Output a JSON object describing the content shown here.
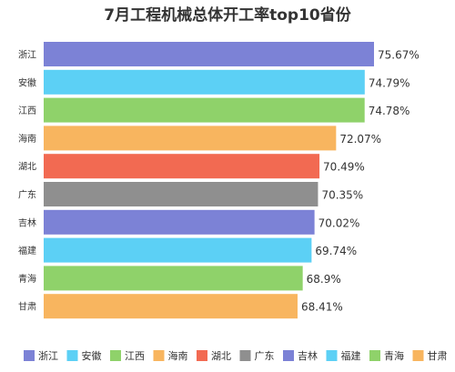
{
  "chart_data": {
    "type": "bar",
    "orientation": "horizontal",
    "title": "7月工程机械总体开工率top10省份",
    "xlabel": "",
    "ylabel": "",
    "grid": false,
    "legend_position": "bottom",
    "categories": [
      "浙江",
      "安徽",
      "江西",
      "海南",
      "湖北",
      "广东",
      "吉林",
      "福建",
      "青海",
      "甘肃"
    ],
    "values": [
      75.67,
      74.79,
      74.78,
      72.07,
      70.49,
      70.35,
      70.02,
      69.74,
      68.9,
      68.41
    ],
    "data_labels": [
      "75.67%",
      "74.79%",
      "74.78%",
      "72.07%",
      "70.49%",
      "70.35%",
      "70.02%",
      "69.74%",
      "68.9%",
      "68.41%"
    ],
    "xlim": [
      44.3,
      75.67
    ],
    "colors": [
      "#7c82d6",
      "#5cd0f5",
      "#8fd26a",
      "#f8b55f",
      "#f26a52",
      "#8f8f8f",
      "#7c82d6",
      "#5cd0f5",
      "#8fd26a",
      "#f8b55f"
    ]
  }
}
